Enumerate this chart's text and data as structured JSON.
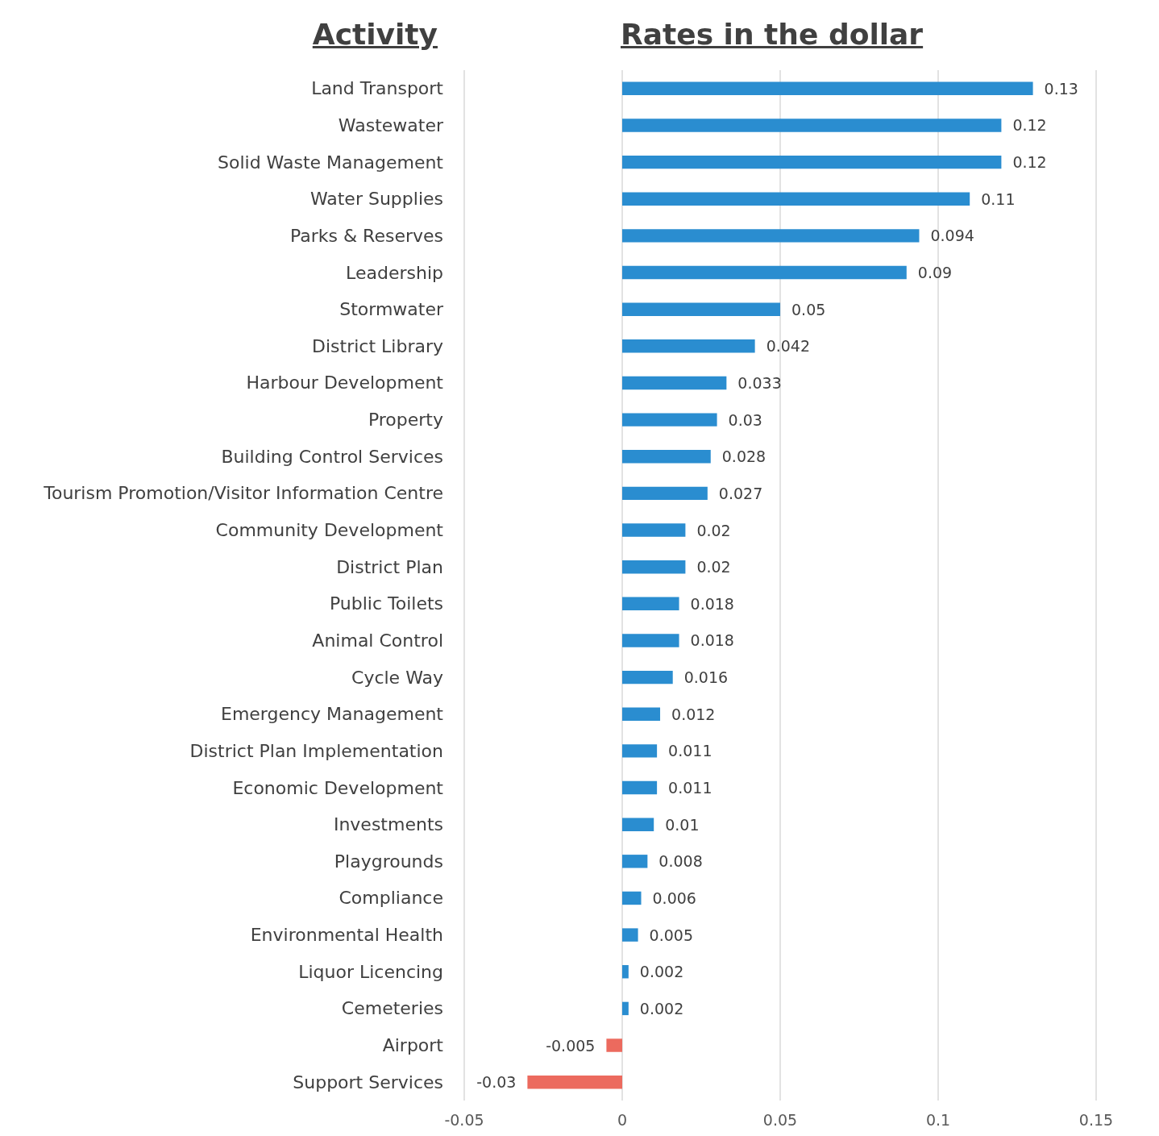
{
  "chart_data": {
    "type": "bar",
    "orientation": "horizontal",
    "title": "Rates in the dollar",
    "ylabel": "Activity",
    "categories": [
      "Land Transport",
      "Wastewater",
      "Solid Waste Management",
      "Water Supplies",
      "Parks & Reserves",
      "Leadership",
      "Stormwater",
      "District Library",
      "Harbour Development",
      "Property",
      "Building Control Services",
      "Tourism Promotion/Visitor Information Centre",
      "Community Development",
      "District Plan",
      "Public Toilets",
      "Animal Control",
      "Cycle Way",
      "Emergency Management",
      "District Plan Implementation",
      "Economic Development",
      "Investments",
      "Playgrounds",
      "Compliance",
      "Environmental Health",
      "Liquor Licencing",
      "Cemeteries",
      "Airport",
      "Support Services"
    ],
    "values": [
      0.13,
      0.12,
      0.12,
      0.11,
      0.094,
      0.09,
      0.05,
      0.042,
      0.033,
      0.03,
      0.028,
      0.027,
      0.02,
      0.02,
      0.018,
      0.018,
      0.016,
      0.012,
      0.011,
      0.011,
      0.01,
      0.008,
      0.006,
      0.005,
      0.002,
      0.002,
      -0.005,
      -0.03
    ],
    "colors": [
      "#2a8dd0",
      "#2a8dd0",
      "#2a8dd0",
      "#2a8dd0",
      "#2a8dd0",
      "#2a8dd0",
      "#2a8dd0",
      "#2a8dd0",
      "#2a8dd0",
      "#2a8dd0",
      "#2a8dd0",
      "#2a8dd0",
      "#2a8dd0",
      "#2a8dd0",
      "#2a8dd0",
      "#2a8dd0",
      "#2a8dd0",
      "#2a8dd0",
      "#2a8dd0",
      "#2a8dd0",
      "#2a8dd0",
      "#2a8dd0",
      "#2a8dd0",
      "#2a8dd0",
      "#2a8dd0",
      "#2a8dd0",
      "#ec6a5e",
      "#ec6a5e"
    ],
    "xlim": [
      -0.05,
      0.15
    ],
    "xticks": [
      -0.05,
      0,
      0.05,
      0.1,
      0.15
    ],
    "grid": "x",
    "data_labels": true
  }
}
